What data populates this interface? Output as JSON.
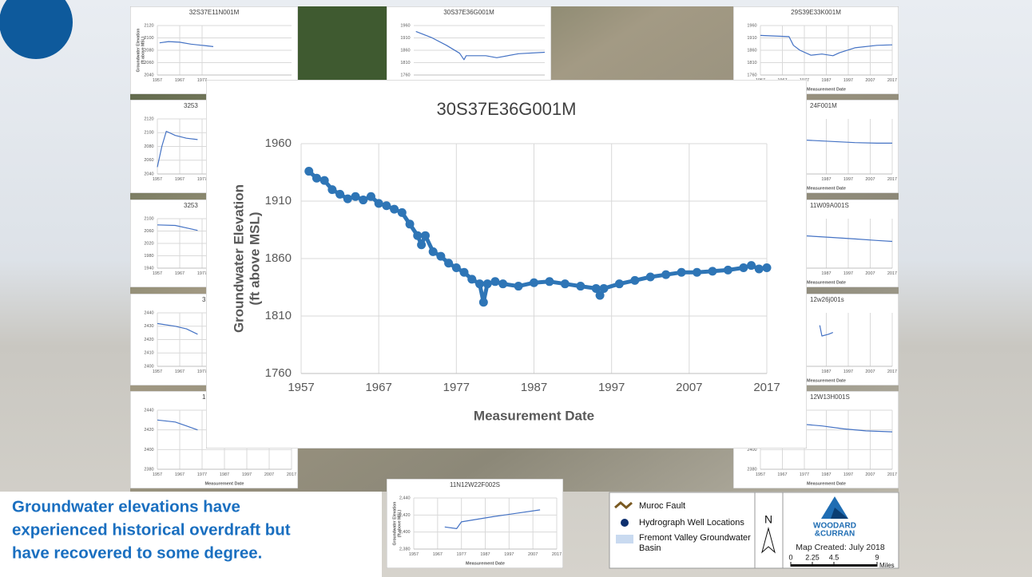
{
  "caption": [
    "Groundwater elevations have",
    "experienced historical overdraft but",
    "have recovered to some degree."
  ],
  "legend": {
    "items": [
      "Muroc Fault",
      "Hydrograph Well Locations",
      "Fremont Valley Groundwater",
      "Basin"
    ]
  },
  "north": "N",
  "logo": [
    "WOODARD",
    "&CURRAN"
  ],
  "map_created": "Map Created: July 2018",
  "scale": {
    "ticks": [
      0,
      2.25,
      4.5,
      9
    ],
    "unit": "Miles"
  },
  "chart_data": [
    {
      "type": "line",
      "title": "30S37E36G001M",
      "y_label": [
        "Groundwater Elevation",
        "(ft above MSL)"
      ],
      "x_label": "Measurement Date",
      "color": "#2e75b6",
      "markers": true,
      "grid": true,
      "xlim": [
        1957,
        2017
      ],
      "xticks": [
        1957,
        1967,
        1977,
        1987,
        1997,
        2007,
        2017
      ],
      "ylim": [
        1760,
        1960
      ],
      "yticks": [
        1760,
        1810,
        1860,
        1910,
        1960
      ],
      "x": [
        1958,
        1959,
        1960,
        1961,
        1962,
        1963,
        1964,
        1965,
        1966,
        1967,
        1968,
        1969,
        1970,
        1971,
        1972,
        1972.5,
        1973,
        1974,
        1975,
        1976,
        1977,
        1978,
        1979,
        1980,
        1980.5,
        1981,
        1982,
        1983,
        1985,
        1987,
        1989,
        1991,
        1993,
        1995,
        1995.5,
        1996,
        1998,
        2000,
        2002,
        2004,
        2006,
        2008,
        2010,
        2012,
        2014,
        2015,
        2016,
        2017
      ],
      "values": [
        1936,
        1930,
        1928,
        1920,
        1916,
        1912,
        1914,
        1911,
        1914,
        1908,
        1906,
        1903,
        1900,
        1890,
        1880,
        1872,
        1880,
        1866,
        1862,
        1856,
        1852,
        1848,
        1842,
        1838,
        1822,
        1838,
        1840,
        1838,
        1836,
        1839,
        1840,
        1838,
        1836,
        1834,
        1828,
        1834,
        1838,
        1841,
        1844,
        1846,
        1848,
        1848,
        1849,
        1850,
        1852,
        1854,
        1851,
        1852
      ]
    },
    {
      "type": "line",
      "title": "32S37E11N001M",
      "y_label": [
        "Groundwater Elevation",
        "(ft above MSL)"
      ],
      "color": "#4472c4",
      "markers": false,
      "grid": true,
      "xlim": [
        1957,
        2017
      ],
      "xticks": [
        1957,
        1967,
        1977
      ],
      "ylim": [
        2040,
        2120
      ],
      "yticks": [
        2040,
        2060,
        2080,
        2100,
        2120
      ],
      "x": [
        1958,
        1962,
        1967,
        1972,
        1977,
        1982
      ],
      "values": [
        2092,
        2094,
        2093,
        2090,
        2088,
        2086
      ]
    },
    {
      "type": "line",
      "title": "30S37E36G001M",
      "color": "#4472c4",
      "markers": false,
      "grid": true,
      "xlim": [
        1957,
        2017
      ],
      "ylim": [
        1760,
        1960
      ],
      "yticks": [
        1760,
        1810,
        1860,
        1910,
        1960
      ],
      "x": [
        1958,
        1965,
        1972,
        1978,
        1980,
        1981,
        1990,
        1995,
        2005,
        2017
      ],
      "values": [
        1936,
        1912,
        1880,
        1848,
        1822,
        1838,
        1838,
        1830,
        1846,
        1852
      ]
    },
    {
      "type": "line",
      "title": "29S39E33K001M",
      "x_label": "Measurement Date",
      "color": "#4472c4",
      "markers": false,
      "grid": true,
      "xlim": [
        1957,
        2017
      ],
      "xticks": [
        1957,
        1967,
        1977,
        1987,
        1997,
        2007,
        2017
      ],
      "ylim": [
        1760,
        1960
      ],
      "yticks": [
        1760,
        1810,
        1860,
        1910,
        1960
      ],
      "x": [
        1957,
        1970,
        1972,
        1975,
        1980,
        1985,
        1990,
        1993,
        2000,
        2010,
        2017
      ],
      "values": [
        1920,
        1915,
        1880,
        1860,
        1840,
        1845,
        1838,
        1850,
        1870,
        1880,
        1882
      ]
    },
    {
      "type": "line",
      "title": "3253",
      "color": "#4472c4",
      "markers": false,
      "grid": true,
      "xlim": [
        1957,
        2017
      ],
      "xticks": [
        1957,
        1967,
        1977
      ],
      "ylim": [
        2040,
        2120
      ],
      "yticks": [
        2040,
        2060,
        2080,
        2100,
        2120
      ],
      "x": [
        1957,
        1959,
        1961,
        1965,
        1970,
        1975
      ],
      "values": [
        2050,
        2080,
        2102,
        2096,
        2092,
        2090
      ]
    },
    {
      "type": "line",
      "title": "3253",
      "color": "#4472c4",
      "markers": false,
      "grid": true,
      "xlim": [
        1957,
        2017
      ],
      "xticks": [
        1957,
        1967,
        1977
      ],
      "ylim": [
        1940,
        2100
      ],
      "yticks": [
        1940,
        1980,
        2020,
        2060,
        2100
      ],
      "x": [
        1957,
        1965,
        1970,
        1975
      ],
      "values": [
        2080,
        2078,
        2070,
        2062
      ]
    },
    {
      "type": "line",
      "title": "3",
      "color": "#4472c4",
      "markers": false,
      "grid": true,
      "xlim": [
        1957,
        2017
      ],
      "xticks": [
        1957,
        1967,
        1977
      ],
      "ylim": [
        2400,
        2440
      ],
      "yticks": [
        2400,
        2410,
        2420,
        2430,
        2440
      ],
      "x": [
        1957,
        1965,
        1970,
        1975
      ],
      "values": [
        2432,
        2430,
        2428,
        2424
      ]
    },
    {
      "type": "line",
      "title": "1",
      "x_label": "Measurement Date",
      "color": "#4472c4",
      "markers": false,
      "grid": true,
      "xlim": [
        1957,
        2017
      ],
      "xticks": [
        1957,
        1967,
        1977,
        1987,
        1997,
        2007,
        2017
      ],
      "ylim": [
        2380,
        2440
      ],
      "yticks": [
        2380,
        2400,
        2420,
        2440
      ],
      "x": [
        1957,
        1965,
        1970,
        1975
      ],
      "values": [
        2430,
        2428,
        2424,
        2420
      ]
    },
    {
      "type": "line",
      "title": "24F001M",
      "x_label": "Measurement Date",
      "color": "#4472c4",
      "markers": false,
      "grid": true,
      "xlim": [
        1957,
        2017
      ],
      "xticks": [
        1987,
        1997,
        2007,
        2017
      ],
      "ylim": [
        1800,
        1900
      ],
      "x": [
        1975,
        1990,
        2000,
        2010,
        2017
      ],
      "values": [
        1862,
        1859,
        1857,
        1856,
        1856
      ]
    },
    {
      "type": "line",
      "title": "11W09A001S",
      "x_label": "Measurement Date",
      "color": "#4472c4",
      "markers": false,
      "grid": true,
      "xlim": [
        1957,
        2017
      ],
      "xticks": [
        1987,
        1997,
        2007,
        2017
      ],
      "ylim": [
        1800,
        1900
      ],
      "x": [
        1975,
        1990,
        2000,
        2010,
        2017
      ],
      "values": [
        1866,
        1862,
        1859,
        1856,
        1854
      ]
    },
    {
      "type": "line",
      "title": "12w26j001s",
      "x_label": "Measurement Date",
      "color": "#4472c4",
      "markers": false,
      "grid": true,
      "xlim": [
        1957,
        2017
      ],
      "xticks": [
        1987,
        1997,
        2007,
        2017
      ],
      "ylim": [
        2380,
        2440
      ],
      "x": [
        1984,
        1985,
        1988,
        1990
      ],
      "values": [
        2426,
        2414,
        2416,
        2418
      ]
    },
    {
      "type": "line",
      "title": "12W13H001S",
      "x_label": "Measurement Date",
      "color": "#4472c4",
      "markers": false,
      "grid": true,
      "xlim": [
        1957,
        2017
      ],
      "xticks": [
        1957,
        1967,
        1977,
        1987,
        1997,
        2007,
        2017
      ],
      "ylim": [
        2380,
        2440
      ],
      "yticks": [
        2380,
        2400,
        2420,
        2440
      ],
      "x": [
        1975,
        1985,
        1995,
        2005,
        2017
      ],
      "values": [
        2426,
        2424,
        2421,
        2419,
        2418
      ]
    },
    {
      "type": "line",
      "title": "11N12W22F002S",
      "y_label": [
        "Groundwater Elevation",
        "(ft above MSL)"
      ],
      "x_label": "Measurement Date",
      "color": "#4472c4",
      "markers": false,
      "grid": true,
      "xlim": [
        1957,
        2017
      ],
      "xticks": [
        1957,
        1967,
        1977,
        1987,
        1997,
        2007,
        2017
      ],
      "ylim": [
        2380,
        2440
      ],
      "yticks": [
        {
          "value": 2380,
          "label": "2,380"
        },
        {
          "value": 2400,
          "label": "2,400"
        },
        {
          "value": 2420,
          "label": "2,420"
        },
        {
          "value": 2440,
          "label": "2,440"
        }
      ],
      "x": [
        1970,
        1975,
        1977,
        1990,
        2000,
        2010
      ],
      "values": [
        2406,
        2404,
        2412,
        2418,
        2422,
        2426
      ]
    }
  ]
}
